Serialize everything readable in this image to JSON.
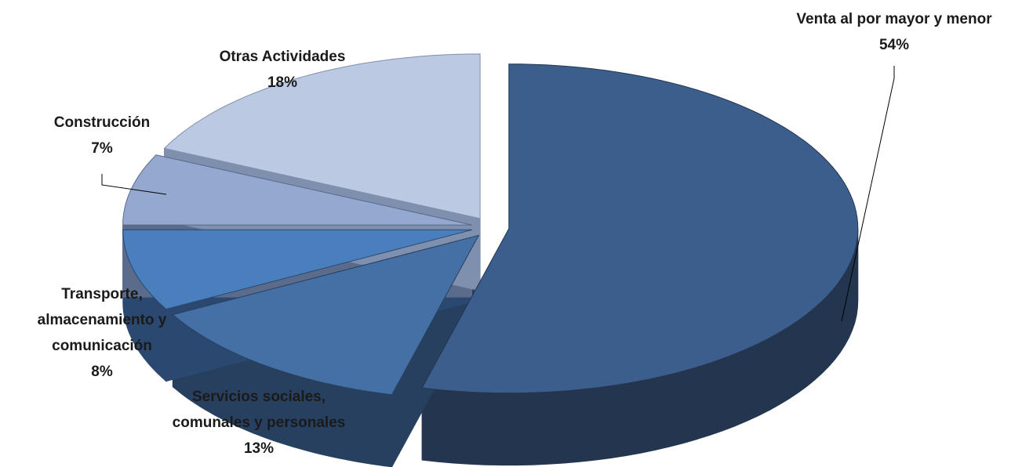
{
  "chart_data": {
    "type": "pie",
    "title": "",
    "style": "3d-exploded",
    "slices": [
      {
        "label": [
          "Venta al por mayor y menor"
        ],
        "value": 54,
        "value_label": "54%",
        "color": "#3b5e8c",
        "side_color": "#24364f"
      },
      {
        "label": [
          "Servicios sociales,",
          "comunales y personales"
        ],
        "value": 13,
        "value_label": "13%",
        "color": "#4470a5",
        "side_color": "#27405f"
      },
      {
        "label": [
          "Transporte,",
          "almacenamiento y",
          "comunicación"
        ],
        "value": 8,
        "value_label": "8%",
        "color": "#4a7fbd",
        "side_color": "#2b4870"
      },
      {
        "label": [
          "Construcción"
        ],
        "value": 7,
        "value_label": "7%",
        "color": "#95a9d0",
        "side_color": "#5a6b8c"
      },
      {
        "label": [
          "Otras Actividades"
        ],
        "value": 18,
        "value_label": "18%",
        "color": "#bcc9e2",
        "side_color": "#7f8fae"
      }
    ]
  }
}
